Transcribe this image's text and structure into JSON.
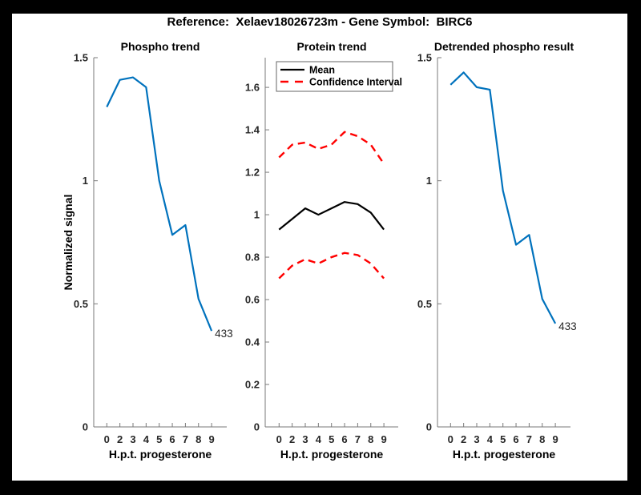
{
  "figure": {
    "title": "Reference:  Xelaev18026723m - Gene Symbol:  BIRC6",
    "background_color": "#000000",
    "canvas_color": "#ffffff",
    "axis_color": "#7a7a7a",
    "tick_label_color": "#262626",
    "accent_blue": "#0072BD",
    "ci_red": "#ff0000"
  },
  "chart_data": [
    {
      "type": "line",
      "title": "Phospho trend",
      "xlabel": "H.p.t. progesterone",
      "ylabel": "Normalized signal",
      "x_tick_labels": [
        "0",
        "2",
        "3",
        "4",
        "5",
        "6",
        "7",
        "8",
        "9"
      ],
      "ylim": [
        0,
        1.5
      ],
      "yticks": [
        0,
        0.5,
        1,
        1.5
      ],
      "ytick_labels": [
        "0",
        "0.5",
        "1",
        "1.5"
      ],
      "grid": false,
      "legend": null,
      "series": [
        {
          "name": "phospho-signal",
          "color": "#0072BD",
          "dashed": false,
          "values": [
            1.3,
            1.41,
            1.42,
            1.38,
            1.0,
            0.78,
            0.82,
            0.52,
            0.39
          ]
        }
      ],
      "end_label": "433"
    },
    {
      "type": "line",
      "title": "Protein trend",
      "xlabel": "H.p.t. progesterone",
      "ylabel": "",
      "x_tick_labels": [
        "0",
        "2",
        "3",
        "4",
        "5",
        "6",
        "7",
        "8",
        "9"
      ],
      "ylim": [
        0,
        1.74
      ],
      "yticks": [
        0,
        0.2,
        0.4,
        0.6,
        0.8,
        1,
        1.2,
        1.4,
        1.6
      ],
      "ytick_labels": [
        "0",
        "0.2",
        "0.4",
        "0.6",
        "0.8",
        "1",
        "1.2",
        "1.4",
        "1.6"
      ],
      "grid": false,
      "legend": {
        "position": "northwest",
        "entries": [
          {
            "label": "Mean",
            "color": "#000000",
            "dashed": false
          },
          {
            "label": "Confidence Interval",
            "color": "#ff0000",
            "dashed": true
          }
        ]
      },
      "series": [
        {
          "name": "mean",
          "color": "#000000",
          "dashed": false,
          "values": [
            0.93,
            0.98,
            1.03,
            1.0,
            1.03,
            1.06,
            1.05,
            1.01,
            0.93
          ]
        },
        {
          "name": "ci-upper",
          "color": "#ff0000",
          "dashed": true,
          "values": [
            1.27,
            1.33,
            1.34,
            1.31,
            1.33,
            1.39,
            1.37,
            1.33,
            1.24
          ]
        },
        {
          "name": "ci-lower",
          "color": "#ff0000",
          "dashed": true,
          "values": [
            0.7,
            0.76,
            0.79,
            0.77,
            0.8,
            0.82,
            0.81,
            0.77,
            0.7
          ]
        }
      ],
      "end_label": null
    },
    {
      "type": "line",
      "title": "Detrended phospho result",
      "xlabel": "H.p.t. progesterone",
      "ylabel": "",
      "x_tick_labels": [
        "0",
        "2",
        "3",
        "4",
        "5",
        "6",
        "7",
        "8",
        "9"
      ],
      "ylim": [
        0,
        1.5
      ],
      "yticks": [
        0,
        0.5,
        1,
        1.5
      ],
      "ytick_labels": [
        "0",
        "0.5",
        "1",
        "1.5"
      ],
      "grid": false,
      "legend": null,
      "series": [
        {
          "name": "detrended-phospho",
          "color": "#0072BD",
          "dashed": false,
          "values": [
            1.39,
            1.44,
            1.38,
            1.37,
            0.96,
            0.74,
            0.78,
            0.52,
            0.42
          ]
        }
      ],
      "end_label": "433"
    }
  ]
}
